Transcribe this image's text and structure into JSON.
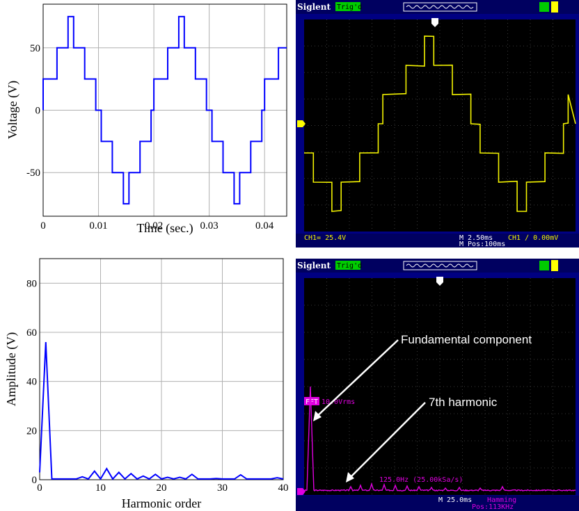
{
  "chart_data": [
    {
      "type": "line",
      "xlabel": "Time (sec.)",
      "ylabel": "Voltage (V)",
      "xlim": [
        0,
        0.044
      ],
      "ylim": [
        -85,
        85
      ],
      "xticks": [
        "0",
        "0.01",
        "0.02",
        "0.03",
        "0.04"
      ],
      "yticks": [
        "50",
        "0",
        "-50"
      ],
      "grid": true,
      "color": "#0000ff",
      "period": 0.02,
      "steps": [
        [
          0.0,
          25
        ],
        [
          0.0025,
          50
        ],
        [
          0.0045,
          75
        ],
        [
          0.0055,
          50
        ],
        [
          0.0075,
          25
        ],
        [
          0.0095,
          0
        ],
        [
          0.0105,
          -25
        ],
        [
          0.0125,
          -50
        ],
        [
          0.0145,
          -75
        ],
        [
          0.0155,
          -50
        ],
        [
          0.0175,
          -25
        ],
        [
          0.0195,
          0
        ]
      ]
    },
    {
      "type": "scope-trace",
      "source": "oscilloscope",
      "header": {
        "brand": "Siglent",
        "status": "Trig'd"
      },
      "footer": {
        "ch1": "CH1= 25.4V",
        "timebase": "M 2.50ms",
        "pos": "M Pos:100ms",
        "trigger": "CH1 ∕ 0.00mV"
      },
      "trace_color": "#f4f400"
    },
    {
      "type": "line",
      "xlabel": "Harmonic order",
      "ylabel": "Amplitude (V)",
      "xlim": [
        0,
        40
      ],
      "ylim": [
        0,
        90
      ],
      "xticks": [
        "0",
        "10",
        "20",
        "30",
        "40"
      ],
      "yticks": [
        "80",
        "60",
        "40",
        "20",
        "0"
      ],
      "grid": true,
      "color": "#0000ff",
      "x": [
        0,
        1,
        2,
        3,
        4,
        5,
        6,
        7,
        8,
        9,
        10,
        11,
        12,
        13,
        14,
        15,
        16,
        17,
        18,
        19,
        20,
        21,
        22,
        23,
        24,
        25,
        26,
        27,
        28,
        29,
        30,
        31,
        32,
        33,
        34,
        35,
        36,
        37,
        38,
        39,
        40
      ],
      "y": [
        3,
        56,
        0.3,
        0.3,
        0.3,
        0.3,
        0.3,
        1.2,
        0.3,
        3.5,
        0.3,
        4.5,
        0.3,
        3,
        0.3,
        2.5,
        0.3,
        1.5,
        0.3,
        2.2,
        0.3,
        1,
        0.3,
        1,
        0.3,
        2.2,
        0.3,
        0.3,
        0.3,
        0.5,
        0.3,
        0.3,
        0.3,
        2,
        0.3,
        0.3,
        0.3,
        0.3,
        0.3,
        0.8,
        0.3
      ]
    },
    {
      "type": "scope-fft",
      "source": "oscilloscope",
      "header": {
        "brand": "Siglent",
        "status": "Trig'd"
      },
      "fft_label": "FFT",
      "fft_unit": "10.0Vrms",
      "freq_label": "125.0Hz (25.00kSa/s)",
      "footer": {
        "timebase": "M 25.0ms",
        "window": "Hamming",
        "pos": "Pos:113KHz"
      },
      "annotations": [
        "Fundamental component",
        "7th harmonic"
      ],
      "trace_color": "#e000e0"
    }
  ]
}
